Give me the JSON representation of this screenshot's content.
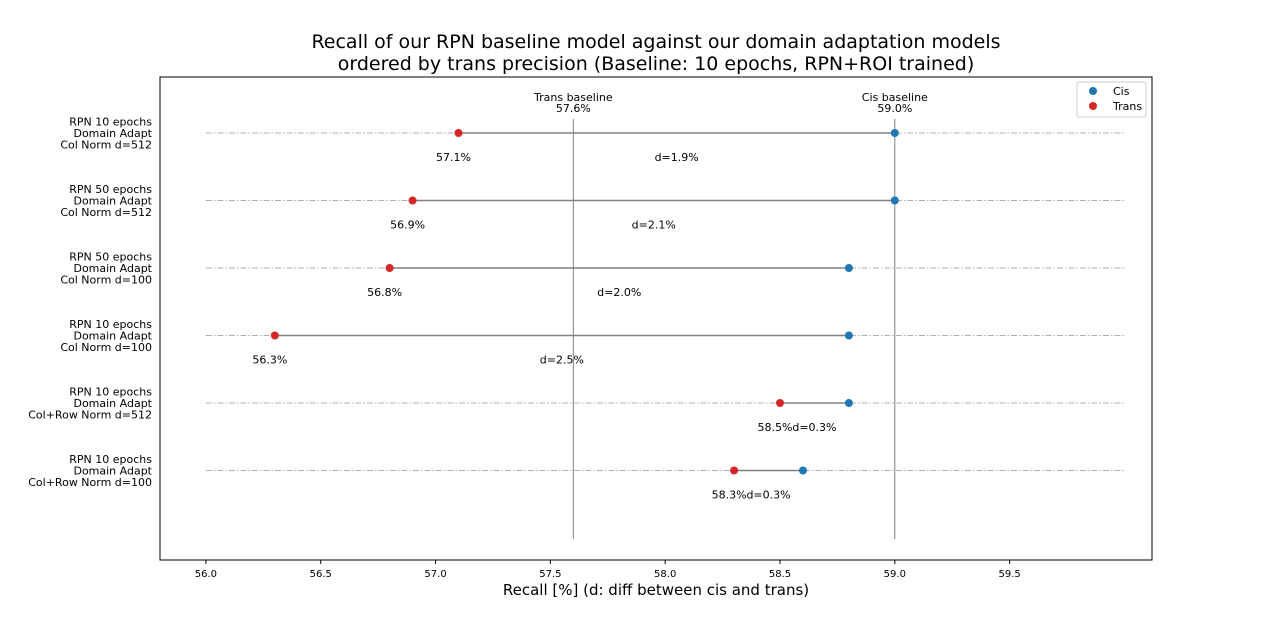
{
  "chart_data": {
    "type": "dumbbell",
    "title_lines": [
      "Recall of our RPN baseline model against our domain adaptation models",
      "ordered by trans precision (Baseline: 10 epochs, RPN+ROI trained)"
    ],
    "xlabel": "Recall [%]   (d: diff between cis and trans)",
    "ylabel": "",
    "xlim": [
      55.8,
      60.12
    ],
    "x_ticks": [
      "56.0",
      "56.5",
      "57.0",
      "57.5",
      "58.0",
      "58.5",
      "59.0",
      "59.5"
    ],
    "x_tick_values": [
      56.0,
      56.5,
      57.0,
      57.5,
      58.0,
      58.5,
      59.0,
      59.5
    ],
    "grid_range": [
      56.0,
      60.0
    ],
    "grid": "horizontal dash-dot per row",
    "legend_position": "top-right",
    "colors": {
      "cis": "#1f77b4",
      "trans": "#d62728",
      "connector": "#808080",
      "baseline": "#808080",
      "grid": "#b0b0b0"
    },
    "baselines": [
      {
        "name": "Trans baseline",
        "label": "Trans baseline",
        "value": 57.6,
        "value_label": "57.6%"
      },
      {
        "name": "Cis baseline",
        "label": "Cis baseline",
        "value": 59.0,
        "value_label": "59.0%"
      }
    ],
    "series": [
      {
        "name": "Cis",
        "key": "cis"
      },
      {
        "name": "Trans",
        "key": "trans"
      }
    ],
    "rows": [
      {
        "label": [
          "RPN 10 epochs",
          "Domain Adapt",
          "Col Norm d=512"
        ],
        "cis": 59.0,
        "trans": 57.1,
        "trans_label": "57.1%",
        "d_label": "d=1.9%"
      },
      {
        "label": [
          "RPN 50 epochs",
          "Domain Adapt",
          "Col Norm d=512"
        ],
        "cis": 59.0,
        "trans": 56.9,
        "trans_label": "56.9%",
        "d_label": "d=2.1%"
      },
      {
        "label": [
          "RPN 50 epochs",
          "Domain Adapt",
          "Col Norm d=100"
        ],
        "cis": 58.8,
        "trans": 56.8,
        "trans_label": "56.8%",
        "d_label": "d=2.0%"
      },
      {
        "label": [
          "RPN 10 epochs",
          "Domain Adapt",
          "Col Norm d=100"
        ],
        "cis": 58.8,
        "trans": 56.3,
        "trans_label": "56.3%",
        "d_label": "d=2.5%"
      },
      {
        "label": [
          "RPN 10 epochs",
          "Domain Adapt",
          "Col+Row Norm d=512"
        ],
        "cis": 58.8,
        "trans": 58.5,
        "trans_label": "58.5%",
        "d_label": "d=0.3%"
      },
      {
        "label": [
          "RPN 10 epochs",
          "Domain Adapt",
          "Col+Row Norm d=100"
        ],
        "cis": 58.6,
        "trans": 58.3,
        "trans_label": "58.3%",
        "d_label": "d=0.3%"
      }
    ]
  }
}
